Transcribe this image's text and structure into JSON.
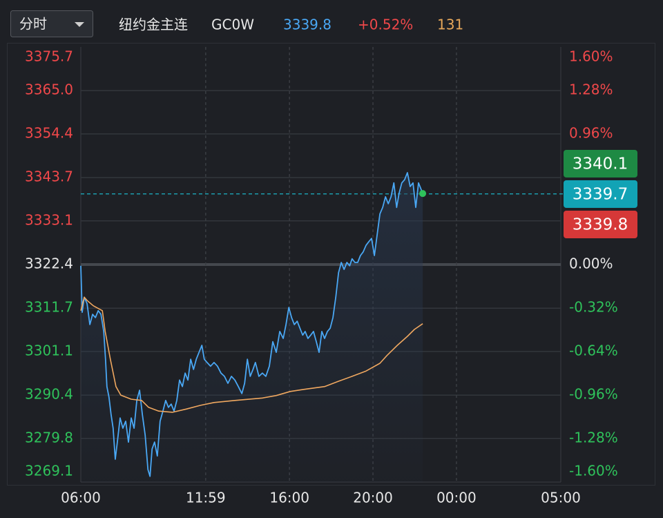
{
  "toolbar": {
    "period": "分时",
    "name": "纽约金主连",
    "code": "GC0W",
    "price": 3339.8,
    "change": "+0.52%",
    "volume": 131
  },
  "chart_data": {
    "type": "line",
    "up_color": "#f0484a",
    "down_color": "#2fc25b",
    "flat_color": "#e8e8e8",
    "grid": true,
    "xlim": [
      0,
      1380
    ],
    "xticks": [
      {
        "value": 0,
        "label": "06:00"
      },
      {
        "value": 359,
        "label": "11:59"
      },
      {
        "value": 600,
        "label": "16:00"
      },
      {
        "value": 840,
        "label": "20:00"
      },
      {
        "value": 1080,
        "label": "00:00"
      },
      {
        "value": 1380,
        "label": "05:00"
      }
    ],
    "ylim": [
      3269.1,
      3375.7
    ],
    "yticks": [
      3269.1,
      3279.8,
      3290.4,
      3301.1,
      3311.7,
      3322.4,
      3333.1,
      3343.7,
      3354.4,
      {
        "value": 3365,
        "label": "3365.0"
      },
      3375.7
    ],
    "y2lim": [
      -1.6,
      1.6
    ],
    "y2ticks": [
      {
        "value": -1.6,
        "label": "-1.60%"
      },
      {
        "value": -1.28,
        "label": "-1.28%"
      },
      {
        "value": -0.96,
        "label": "-0.96%"
      },
      {
        "value": -0.64,
        "label": "-0.64%"
      },
      {
        "value": -0.32,
        "label": "-0.32%"
      },
      {
        "value": 0,
        "label": "0.00%"
      },
      {
        "value": 0.96,
        "label": "0.96%"
      },
      {
        "value": 1.28,
        "label": "1.28%"
      },
      {
        "value": 1.6,
        "label": "1.60%"
      }
    ],
    "series": [
      {
        "color": "#4aa8f5",
        "x": [
          0,
          4,
          10,
          18,
          26,
          34,
          42,
          50,
          58,
          66,
          71,
          75,
          81,
          87,
          93,
          99,
          105,
          113,
          121,
          129,
          137,
          145,
          153,
          161,
          169,
          177,
          185,
          193,
          199,
          205,
          212,
          220,
          228,
          236,
          244,
          252,
          260,
          268,
          276,
          284,
          292,
          300,
          308,
          316,
          324,
          332,
          340,
          348,
          355,
          363,
          373,
          383,
          393,
          403,
          413,
          423,
          433,
          443,
          453,
          463,
          471,
          479,
          487,
          495,
          502,
          512,
          522,
          532,
          542,
          552,
          562,
          572,
          582,
          590,
          598,
          606,
          614,
          622,
          630,
          638,
          645,
          653,
          661,
          669,
          677,
          685,
          693,
          701,
          709,
          717,
          725,
          733,
          741,
          749,
          757,
          765,
          773,
          780,
          788,
          796,
          804,
          812,
          820,
          828,
          836,
          844,
          852,
          860,
          868,
          876,
          884,
          892,
          900,
          908,
          915,
          923,
          931,
          939,
          947,
          955,
          963,
          971,
          979,
          983
        ],
        "values": [
          3322.1,
          3310.7,
          3314.4,
          3312.8,
          3307.7,
          3310.2,
          3309.4,
          3311.1,
          3310.2,
          3306.0,
          3299.2,
          3292.5,
          3289.9,
          3285.7,
          3282.3,
          3274.7,
          3278.9,
          3284.8,
          3282.3,
          3284.0,
          3278.9,
          3284.8,
          3282.3,
          3289.1,
          3291.6,
          3285.7,
          3280.6,
          3272.2,
          3270.5,
          3277.2,
          3278.9,
          3275.5,
          3284.0,
          3286.5,
          3289.1,
          3287.4,
          3288.2,
          3286.5,
          3289.1,
          3294.1,
          3292.5,
          3295.8,
          3294.1,
          3299.2,
          3296.7,
          3299.2,
          3300.9,
          3302.6,
          3299.2,
          3298.4,
          3297.5,
          3298.4,
          3297.5,
          3295.8,
          3295.0,
          3293.3,
          3295.0,
          3294.1,
          3292.5,
          3290.8,
          3293.3,
          3299.2,
          3295.0,
          3296.7,
          3298.4,
          3295.0,
          3295.8,
          3295.0,
          3297.5,
          3303.5,
          3300.9,
          3306.0,
          3304.3,
          3307.7,
          3311.9,
          3309.4,
          3307.7,
          3308.5,
          3306.8,
          3305.1,
          3306.0,
          3304.3,
          3305.1,
          3306.0,
          3303.5,
          3300.9,
          3306.0,
          3304.3,
          3306.0,
          3306.8,
          3309.4,
          3314.4,
          3320.4,
          3322.9,
          3321.2,
          3322.9,
          3322.1,
          3323.8,
          3322.9,
          3322.9,
          3324.6,
          3325.5,
          3327.1,
          3328.0,
          3328.8,
          3324.6,
          3329.7,
          3334.8,
          3336.4,
          3339.0,
          3337.3,
          3339.0,
          3342.4,
          3336.4,
          3339.8,
          3342.4,
          3343.2,
          3344.9,
          3341.5,
          3342.4,
          3336.4,
          3342.4,
          3340.7,
          3339.8
        ]
      },
      {
        "color": "#f0a860",
        "x": [
          0,
          10,
          18,
          36,
          62,
          70,
          85,
          101,
          115,
          145,
          175,
          195,
          224,
          264,
          304,
          344,
          383,
          443,
          522,
          562,
          602,
          641,
          701,
          741,
          780,
          820,
          860,
          880,
          910,
          939,
          959,
          983
        ],
        "values": [
          3311.1,
          3314.4,
          3313.6,
          3312.3,
          3311.1,
          3306.0,
          3299.2,
          3292.5,
          3290.4,
          3289.4,
          3289.1,
          3287.4,
          3286.5,
          3286.2,
          3287.0,
          3287.9,
          3288.6,
          3289.1,
          3289.7,
          3290.3,
          3291.3,
          3291.8,
          3292.5,
          3293.8,
          3295.0,
          3296.3,
          3298.2,
          3300.1,
          3302.6,
          3304.8,
          3306.5,
          3307.9
        ]
      }
    ],
    "price_tags": [
      {
        "value": 3340.1,
        "color": "#1e8a44"
      },
      {
        "value": 3339.7,
        "color": "#12a3b5"
      },
      {
        "value": 3339.8,
        "color": "#d63838"
      }
    ],
    "last_point_color": "#2fc25b"
  }
}
